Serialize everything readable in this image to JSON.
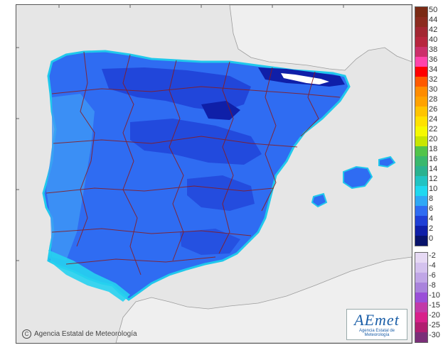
{
  "copyright_text": "Agencia Estatal de Meteorología",
  "logo": {
    "wordmark": "AEmet",
    "subtitle": "Agencia Estatal de Meteorología"
  },
  "colors": {
    "sea_background": "#e6e6e6",
    "neighbour_land": "#eeeeee",
    "field_dark": "#1f3fd6",
    "field_mid": "#2f6cf2",
    "field_light": "#3f98f5",
    "field_coast": "#27d1f0",
    "province_borders": "#8b1a1a"
  },
  "legend": {
    "upper": [
      {
        "label": "50",
        "color": "#7a2a14"
      },
      {
        "label": "44",
        "color": "#8b2b1f"
      },
      {
        "label": "42",
        "color": "#a22732"
      },
      {
        "label": "40",
        "color": "#b7263e"
      },
      {
        "label": "38",
        "color": "#cc2f6a"
      },
      {
        "label": "36",
        "color": "#ff44aa"
      },
      {
        "label": "34",
        "color": "#ff0000"
      },
      {
        "label": "32",
        "color": "#ff5a00"
      },
      {
        "label": "30",
        "color": "#ff8c00"
      },
      {
        "label": "28",
        "color": "#ffa200"
      },
      {
        "label": "26",
        "color": "#ffc400"
      },
      {
        "label": "24",
        "color": "#ffe100"
      },
      {
        "label": "22",
        "color": "#f6f900"
      },
      {
        "label": "20",
        "color": "#c8e600"
      },
      {
        "label": "18",
        "color": "#52c44a"
      },
      {
        "label": "16",
        "color": "#39b86d"
      },
      {
        "label": "14",
        "color": "#2ab28f"
      },
      {
        "label": "12",
        "color": "#22c3c2"
      },
      {
        "label": "10",
        "color": "#20d8ef"
      },
      {
        "label": "8",
        "color": "#2fa8f5"
      },
      {
        "label": "6",
        "color": "#2f6cf2"
      },
      {
        "label": "4",
        "color": "#1f3fd6"
      },
      {
        "label": "2",
        "color": "#0f1fa8"
      },
      {
        "label": "0",
        "color": "#08136b"
      }
    ],
    "lower": [
      {
        "label": "-2",
        "color": "#e6d9f4"
      },
      {
        "label": "-4",
        "color": "#d4c2ee"
      },
      {
        "label": "-6",
        "color": "#c0a6e6"
      },
      {
        "label": "-8",
        "color": "#a983dc"
      },
      {
        "label": "-10",
        "color": "#9a4fd8"
      },
      {
        "label": "-15",
        "color": "#c23aa8"
      },
      {
        "label": "-20",
        "color": "#d8208a"
      },
      {
        "label": "-25",
        "color": "#b01e70"
      },
      {
        "label": "-30",
        "color": "#7a2e78"
      }
    ]
  }
}
